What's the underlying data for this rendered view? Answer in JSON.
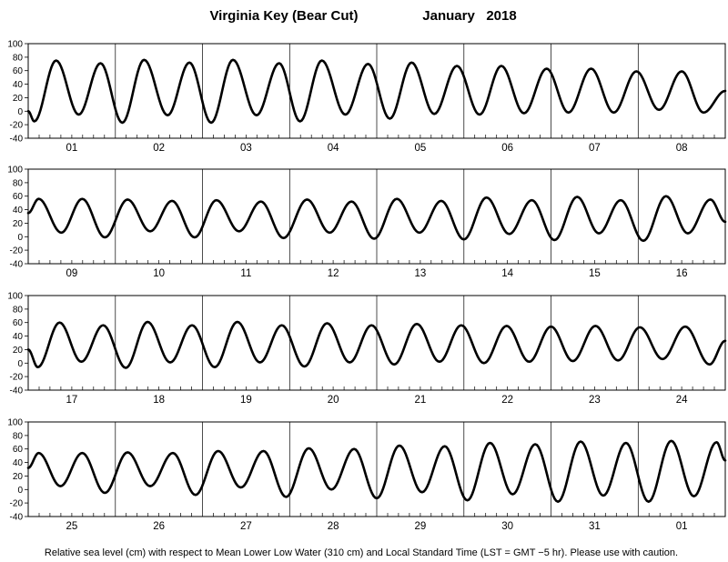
{
  "header": {
    "station": "Virginia Key (Bear Cut)",
    "month_year": "January   2018"
  },
  "caption": "Relative sea level (cm) with respect to Mean Lower Low Water (310 cm) and Local Standard Time (LST = GMT −5 hr). Please use with caution.",
  "chart_data": {
    "type": "line",
    "title": "Virginia Key (Bear Cut)   January   2018",
    "ylabel": "Relative sea level (cm)",
    "ylim": [
      -40,
      100
    ],
    "yticks": [
      -40,
      -20,
      0,
      20,
      40,
      60,
      80,
      100
    ],
    "grid": "vertical lines at midnight",
    "series_color": "#000000",
    "panels": [
      {
        "days": [
          "01",
          "02",
          "03",
          "04",
          "05",
          "06",
          "07",
          "08"
        ],
        "extrema": [
          [
            0.0,
            0
          ],
          [
            0.07,
            -15
          ],
          [
            0.32,
            75
          ],
          [
            0.58,
            -5
          ],
          [
            0.83,
            71
          ],
          [
            1.08,
            -17
          ],
          [
            1.33,
            76
          ],
          [
            1.6,
            -6
          ],
          [
            1.85,
            72
          ],
          [
            2.1,
            -17
          ],
          [
            2.35,
            76
          ],
          [
            2.62,
            -6
          ],
          [
            2.88,
            71
          ],
          [
            3.12,
            -15
          ],
          [
            3.37,
            75
          ],
          [
            3.64,
            -5
          ],
          [
            3.9,
            70
          ],
          [
            4.15,
            -11
          ],
          [
            4.4,
            72
          ],
          [
            4.66,
            -4
          ],
          [
            4.92,
            67
          ],
          [
            5.18,
            -5
          ],
          [
            5.43,
            67
          ],
          [
            5.69,
            -3
          ],
          [
            5.95,
            63
          ],
          [
            6.2,
            -2
          ],
          [
            6.46,
            63
          ],
          [
            6.72,
            -2
          ],
          [
            6.98,
            59
          ],
          [
            7.24,
            2
          ],
          [
            7.5,
            59
          ],
          [
            7.75,
            -2
          ],
          [
            8.0,
            30
          ]
        ]
      },
      {
        "days": [
          "09",
          "10",
          "11",
          "12",
          "13",
          "14",
          "15",
          "16"
        ],
        "extrema": [
          [
            0.0,
            35
          ],
          [
            0.12,
            56
          ],
          [
            0.38,
            6
          ],
          [
            0.62,
            56
          ],
          [
            0.88,
            -1
          ],
          [
            1.14,
            55
          ],
          [
            1.4,
            8
          ],
          [
            1.65,
            53
          ],
          [
            1.91,
            -1
          ],
          [
            2.16,
            54
          ],
          [
            2.42,
            8
          ],
          [
            2.67,
            52
          ],
          [
            2.93,
            -2
          ],
          [
            3.2,
            55
          ],
          [
            3.46,
            6
          ],
          [
            3.71,
            52
          ],
          [
            3.97,
            -3
          ],
          [
            4.23,
            56
          ],
          [
            4.49,
            6
          ],
          [
            4.74,
            53
          ],
          [
            5.0,
            -4
          ],
          [
            5.26,
            58
          ],
          [
            5.52,
            4
          ],
          [
            5.78,
            54
          ],
          [
            6.04,
            -5
          ],
          [
            6.3,
            59
          ],
          [
            6.55,
            5
          ],
          [
            6.8,
            54
          ],
          [
            7.06,
            -6
          ],
          [
            7.32,
            60
          ],
          [
            7.57,
            5
          ],
          [
            7.83,
            55
          ],
          [
            8.0,
            22
          ]
        ]
      },
      {
        "days": [
          "17",
          "18",
          "19",
          "20",
          "21",
          "22",
          "23",
          "24"
        ],
        "extrema": [
          [
            0.0,
            20
          ],
          [
            0.11,
            -6
          ],
          [
            0.36,
            60
          ],
          [
            0.61,
            2
          ],
          [
            0.86,
            56
          ],
          [
            1.12,
            -7
          ],
          [
            1.37,
            61
          ],
          [
            1.63,
            1
          ],
          [
            1.88,
            56
          ],
          [
            2.14,
            -6
          ],
          [
            2.4,
            61
          ],
          [
            2.66,
            1
          ],
          [
            2.91,
            56
          ],
          [
            3.17,
            -5
          ],
          [
            3.43,
            59
          ],
          [
            3.69,
            1
          ],
          [
            3.94,
            56
          ],
          [
            4.2,
            -2
          ],
          [
            4.46,
            58
          ],
          [
            4.72,
            2
          ],
          [
            4.97,
            56
          ],
          [
            5.23,
            0
          ],
          [
            5.49,
            55
          ],
          [
            5.75,
            2
          ],
          [
            6.0,
            54
          ],
          [
            6.25,
            3
          ],
          [
            6.51,
            55
          ],
          [
            6.77,
            4
          ],
          [
            7.02,
            53
          ],
          [
            7.28,
            6
          ],
          [
            7.54,
            54
          ],
          [
            7.82,
            -2
          ],
          [
            8.0,
            33
          ]
        ]
      },
      {
        "days": [
          "25",
          "26",
          "27",
          "28",
          "29",
          "30",
          "31",
          "01"
        ],
        "extrema": [
          [
            0.0,
            32
          ],
          [
            0.12,
            54
          ],
          [
            0.37,
            5
          ],
          [
            0.62,
            54
          ],
          [
            0.88,
            -5
          ],
          [
            1.14,
            55
          ],
          [
            1.4,
            5
          ],
          [
            1.66,
            54
          ],
          [
            1.92,
            -8
          ],
          [
            2.18,
            57
          ],
          [
            2.44,
            3
          ],
          [
            2.7,
            57
          ],
          [
            2.96,
            -11
          ],
          [
            3.22,
            61
          ],
          [
            3.48,
            0
          ],
          [
            3.74,
            60
          ],
          [
            4.0,
            -13
          ],
          [
            4.26,
            65
          ],
          [
            4.52,
            -4
          ],
          [
            4.78,
            64
          ],
          [
            5.04,
            -16
          ],
          [
            5.3,
            69
          ],
          [
            5.56,
            -7
          ],
          [
            5.82,
            67
          ],
          [
            6.08,
            -18
          ],
          [
            6.34,
            71
          ],
          [
            6.6,
            -9
          ],
          [
            6.86,
            69
          ],
          [
            7.12,
            -18
          ],
          [
            7.38,
            72
          ],
          [
            7.64,
            -10
          ],
          [
            7.9,
            70
          ],
          [
            8.0,
            43
          ]
        ]
      }
    ]
  }
}
